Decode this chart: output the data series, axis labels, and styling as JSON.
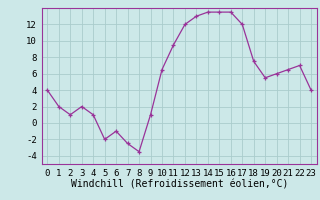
{
  "x": [
    0,
    1,
    2,
    3,
    4,
    5,
    6,
    7,
    8,
    9,
    10,
    11,
    12,
    13,
    14,
    15,
    16,
    17,
    18,
    19,
    20,
    21,
    22,
    23
  ],
  "y": [
    4,
    2,
    1,
    2,
    1,
    -2,
    -1,
    -2.5,
    -3.5,
    1,
    6.5,
    9.5,
    12,
    13,
    13.5,
    13.5,
    13.5,
    12,
    7.5,
    5.5,
    6,
    6.5,
    7,
    4
  ],
  "line_color": "#993399",
  "marker_color": "#993399",
  "bg_color": "#cce8e8",
  "grid_color": "#aacccc",
  "xlim": [
    -0.5,
    23.5
  ],
  "ylim": [
    -5,
    14
  ],
  "yticks": [
    -4,
    -2,
    0,
    2,
    4,
    6,
    8,
    10,
    12
  ],
  "xlabel": "Windchill (Refroidissement éolien,°C)",
  "tick_fontsize": 6.5,
  "xlabel_fontsize": 7
}
